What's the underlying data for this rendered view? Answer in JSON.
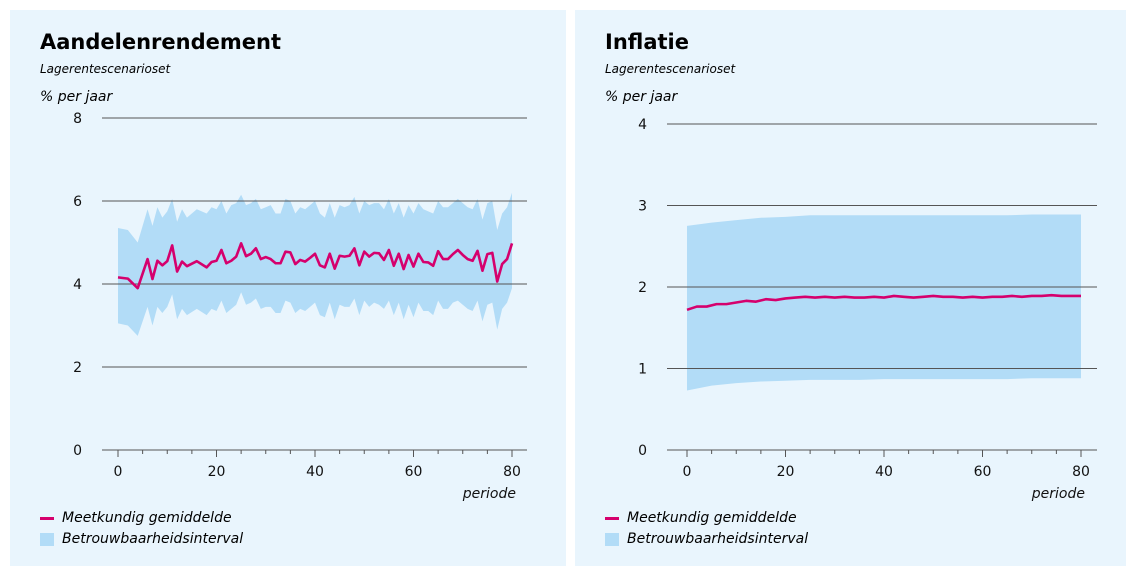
{
  "colors": {
    "line": "#d5006d",
    "band": "#b2dcf7",
    "panel_bg": "#e9f5fd",
    "grid": "#555555"
  },
  "left": {
    "title": "Aandelenrendement",
    "subtitle": "Lagerentescenarioset",
    "unit": "% per jaar",
    "x_axis_label": "periode",
    "legend": {
      "line": "Meetkundig gemiddelde",
      "band": "Betrouwbaarheidsinterval"
    }
  },
  "right": {
    "title": "Inflatie",
    "subtitle": "Lagerentescenarioset",
    "unit": "% per jaar",
    "x_axis_label": "periode",
    "legend": {
      "line": "Meetkundig gemiddelde",
      "band": "Betrouwbaarheidsinterval"
    }
  },
  "chart_data": [
    {
      "type": "line",
      "title": "Aandelenrendement",
      "subtitle": "Lagerentescenarioset",
      "ylabel": "% per jaar",
      "xlabel": "periode",
      "xlim": [
        0,
        80
      ],
      "ylim": [
        0,
        8
      ],
      "yticks": [
        0,
        2,
        4,
        6,
        8
      ],
      "xticks": [
        0,
        20,
        40,
        60,
        80
      ],
      "x_tick_labels": [
        "0",
        "20",
        "40",
        "60",
        "80"
      ],
      "y_tick_labels": [
        "0",
        "2",
        "4",
        "6",
        "8"
      ],
      "grid": true,
      "legend_position": "bottom-left",
      "series": [
        {
          "name": "Meetkundig gemiddelde",
          "kind": "line",
          "x": [
            0,
            2,
            4,
            6,
            7,
            8,
            9,
            10,
            11,
            12,
            13,
            14,
            16,
            18,
            19,
            20,
            21,
            22,
            23,
            24,
            25,
            26,
            27,
            28,
            29,
            30,
            31,
            32,
            33,
            34,
            35,
            36,
            37,
            38,
            39,
            40,
            41,
            42,
            43,
            44,
            45,
            46,
            47,
            48,
            49,
            50,
            51,
            52,
            53,
            54,
            55,
            56,
            57,
            58,
            59,
            60,
            61,
            62,
            63,
            64,
            65,
            66,
            67,
            68,
            69,
            70,
            71,
            72,
            73,
            74,
            75,
            76,
            77,
            78,
            79,
            80
          ],
          "values": [
            4.16,
            4.13,
            3.9,
            4.6,
            4.12,
            4.56,
            4.45,
            4.55,
            4.93,
            4.3,
            4.54,
            4.43,
            4.55,
            4.4,
            4.53,
            4.56,
            4.82,
            4.5,
            4.56,
            4.66,
            4.98,
            4.67,
            4.73,
            4.86,
            4.6,
            4.65,
            4.6,
            4.5,
            4.5,
            4.78,
            4.76,
            4.48,
            4.58,
            4.54,
            4.63,
            4.73,
            4.45,
            4.4,
            4.73,
            4.37,
            4.68,
            4.66,
            4.68,
            4.86,
            4.45,
            4.78,
            4.66,
            4.75,
            4.74,
            4.58,
            4.82,
            4.44,
            4.73,
            4.36,
            4.7,
            4.42,
            4.73,
            4.53,
            4.52,
            4.44,
            4.79,
            4.6,
            4.6,
            4.72,
            4.82,
            4.7,
            4.6,
            4.56,
            4.8,
            4.32,
            4.72,
            4.75,
            4.06,
            4.48,
            4.6,
            4.98
          ]
        },
        {
          "name": "Betrouwbaarheidsinterval",
          "kind": "band",
          "x": [
            0,
            2,
            4,
            6,
            7,
            8,
            9,
            10,
            11,
            12,
            13,
            14,
            16,
            18,
            19,
            20,
            21,
            22,
            23,
            24,
            25,
            26,
            27,
            28,
            29,
            30,
            31,
            32,
            33,
            34,
            35,
            36,
            37,
            38,
            39,
            40,
            41,
            42,
            43,
            44,
            45,
            46,
            47,
            48,
            49,
            50,
            51,
            52,
            53,
            54,
            55,
            56,
            57,
            58,
            59,
            60,
            61,
            62,
            63,
            64,
            65,
            66,
            67,
            68,
            69,
            70,
            71,
            72,
            73,
            74,
            75,
            76,
            77,
            78,
            79,
            80
          ],
          "upper": [
            5.35,
            5.3,
            5.0,
            5.8,
            5.4,
            5.85,
            5.6,
            5.75,
            6.05,
            5.5,
            5.8,
            5.6,
            5.8,
            5.7,
            5.85,
            5.8,
            6.0,
            5.7,
            5.9,
            5.95,
            6.15,
            5.9,
            5.95,
            6.05,
            5.8,
            5.85,
            5.9,
            5.7,
            5.7,
            6.05,
            6.0,
            5.7,
            5.85,
            5.8,
            5.9,
            6.0,
            5.7,
            5.6,
            5.95,
            5.6,
            5.9,
            5.85,
            5.9,
            6.1,
            5.7,
            6.0,
            5.9,
            5.95,
            5.95,
            5.8,
            6.05,
            5.7,
            5.95,
            5.6,
            5.9,
            5.7,
            5.95,
            5.8,
            5.75,
            5.7,
            6.0,
            5.85,
            5.85,
            5.95,
            6.05,
            5.95,
            5.85,
            5.8,
            6.05,
            5.55,
            5.95,
            6.0,
            5.3,
            5.7,
            5.85,
            6.2
          ],
          "lower": [
            3.05,
            3.0,
            2.75,
            3.45,
            3.0,
            3.45,
            3.3,
            3.45,
            3.75,
            3.15,
            3.4,
            3.25,
            3.4,
            3.25,
            3.4,
            3.35,
            3.6,
            3.3,
            3.4,
            3.5,
            3.8,
            3.5,
            3.55,
            3.65,
            3.4,
            3.45,
            3.45,
            3.3,
            3.3,
            3.6,
            3.55,
            3.3,
            3.4,
            3.35,
            3.45,
            3.55,
            3.25,
            3.2,
            3.55,
            3.15,
            3.5,
            3.45,
            3.45,
            3.65,
            3.25,
            3.6,
            3.45,
            3.55,
            3.5,
            3.4,
            3.6,
            3.25,
            3.55,
            3.15,
            3.5,
            3.2,
            3.55,
            3.35,
            3.35,
            3.25,
            3.6,
            3.4,
            3.4,
            3.55,
            3.6,
            3.5,
            3.4,
            3.35,
            3.6,
            3.1,
            3.5,
            3.55,
            2.9,
            3.4,
            3.55,
            3.9
          ]
        }
      ]
    },
    {
      "type": "line",
      "title": "Inflatie",
      "subtitle": "Lagerentescenarioset",
      "ylabel": "% per jaar",
      "xlabel": "periode",
      "xlim": [
        0,
        80
      ],
      "ylim": [
        0,
        4
      ],
      "yticks": [
        0,
        1,
        2,
        3,
        4
      ],
      "xticks": [
        0,
        20,
        40,
        60,
        80
      ],
      "x_tick_labels": [
        "0",
        "20",
        "40",
        "60",
        "80"
      ],
      "y_tick_labels": [
        "0",
        "1",
        "2",
        "3",
        "4"
      ],
      "grid": true,
      "legend_position": "bottom-left",
      "series": [
        {
          "name": "Meetkundig gemiddelde",
          "kind": "line",
          "x": [
            0,
            2,
            4,
            6,
            8,
            10,
            12,
            14,
            16,
            18,
            20,
            22,
            24,
            26,
            28,
            30,
            32,
            34,
            36,
            38,
            40,
            42,
            44,
            46,
            48,
            50,
            52,
            54,
            56,
            58,
            60,
            62,
            64,
            66,
            68,
            70,
            72,
            74,
            76,
            78,
            80
          ],
          "values": [
            1.72,
            1.76,
            1.76,
            1.79,
            1.79,
            1.81,
            1.83,
            1.82,
            1.85,
            1.84,
            1.86,
            1.87,
            1.88,
            1.87,
            1.88,
            1.87,
            1.88,
            1.87,
            1.87,
            1.88,
            1.87,
            1.89,
            1.88,
            1.87,
            1.88,
            1.89,
            1.88,
            1.88,
            1.87,
            1.88,
            1.87,
            1.88,
            1.88,
            1.89,
            1.88,
            1.89,
            1.89,
            1.9,
            1.89,
            1.89,
            1.89
          ]
        },
        {
          "name": "Betrouwbaarheidsinterval",
          "kind": "band",
          "x": [
            0,
            5,
            10,
            15,
            20,
            25,
            30,
            35,
            40,
            45,
            50,
            55,
            60,
            65,
            70,
            75,
            80
          ],
          "upper": [
            2.75,
            2.79,
            2.82,
            2.85,
            2.86,
            2.88,
            2.88,
            2.88,
            2.88,
            2.88,
            2.88,
            2.88,
            2.88,
            2.88,
            2.89,
            2.89,
            2.89
          ],
          "lower": [
            0.73,
            0.79,
            0.82,
            0.84,
            0.85,
            0.86,
            0.86,
            0.86,
            0.87,
            0.87,
            0.87,
            0.87,
            0.87,
            0.87,
            0.88,
            0.88,
            0.88
          ]
        }
      ]
    }
  ]
}
